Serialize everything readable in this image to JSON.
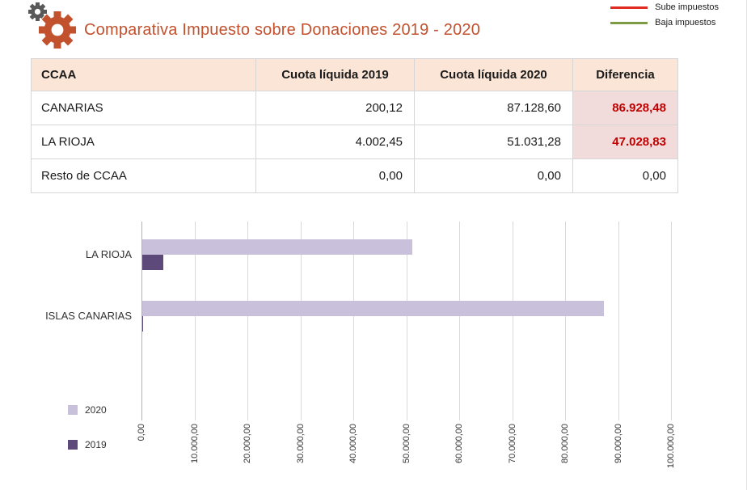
{
  "header": {
    "title": "Comparativa Impuesto sobre Donaciones 2019 - 2020",
    "legend": [
      {
        "label": "Sube impuestos",
        "color": "#e02b20"
      },
      {
        "label": "Baja impuestos",
        "color": "#7d9c43"
      }
    ]
  },
  "table": {
    "columns": [
      "CCAA",
      "Cuota líquida 2019",
      "Cuota líquida 2020",
      "Diferencia"
    ],
    "rows": [
      {
        "ccaa": "CANARIAS",
        "c2019": "200,12",
        "c2020": "87.128,60",
        "dif": "86.928,48",
        "highlight": true
      },
      {
        "ccaa": "LA RIOJA",
        "c2019": "4.002,45",
        "c2020": "51.031,28",
        "dif": "47.028,83",
        "highlight": true
      },
      {
        "ccaa": "Resto de CCAA",
        "c2019": "0,00",
        "c2020": "0,00",
        "dif": "0,00",
        "highlight": false
      }
    ]
  },
  "chart_data": {
    "type": "bar",
    "orientation": "horizontal",
    "title": "",
    "categories": [
      "LA RIOJA",
      "ISLAS CANARIAS"
    ],
    "series": [
      {
        "name": "2020",
        "color": "#c9c0dc",
        "values": [
          51031.28,
          87128.6
        ]
      },
      {
        "name": "2019",
        "color": "#5d4a7b",
        "values": [
          4002.45,
          200.12
        ]
      }
    ],
    "xlim": [
      0,
      100000
    ],
    "x_ticks": [
      "0,00",
      "10.000,00",
      "20.000,00",
      "30.000,00",
      "40.000,00",
      "50.000,00",
      "60.000,00",
      "70.000,00",
      "80.000,00",
      "90.000,00",
      "100.000,00"
    ],
    "grid": true,
    "legend_position": "bottom-left"
  },
  "colors": {
    "title": "#c2512e",
    "table_header_bg": "#fbe5d6",
    "diff_highlight_bg": "#f2dcdb",
    "diff_highlight_text": "#c00000"
  }
}
